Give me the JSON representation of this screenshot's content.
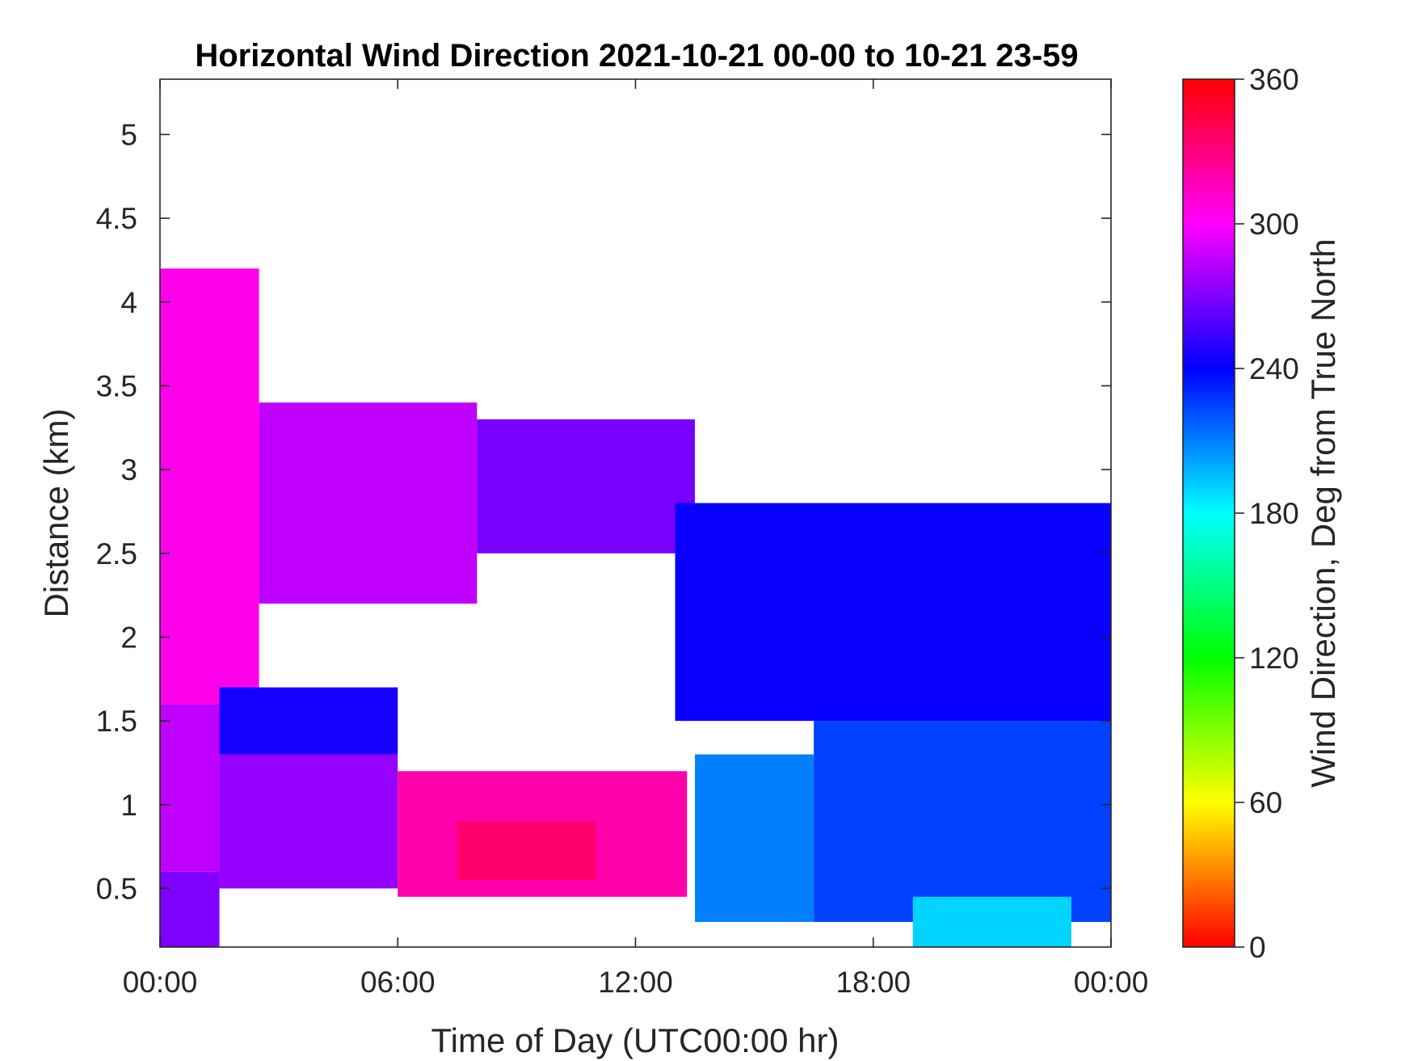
{
  "chart_data": {
    "type": "heatmap",
    "title": "Horizontal Wind Direction 2021-10-21 00-00 to 10-21 23-59",
    "xlabel": "Time of Day (UTC00:00 hr)",
    "ylabel": "Distance (km)",
    "colorbar_label": "Wind Direction, Deg from True North",
    "x_ticks": [
      "00:00",
      "06:00",
      "12:00",
      "18:00",
      "00:00"
    ],
    "x_range_hours": [
      0,
      24
    ],
    "y_ticks": [
      0.5,
      1,
      1.5,
      2,
      2.5,
      3,
      3.5,
      4,
      4.5,
      5
    ],
    "y_range_km": [
      0.15,
      5.33
    ],
    "colorbar_ticks": [
      0,
      60,
      120,
      180,
      240,
      300,
      360
    ],
    "colorbar_range": [
      0,
      360
    ],
    "colormap": [
      "#ff0000",
      "#ffff00",
      "#00ff00",
      "#00ffff",
      "#0000ff",
      "#ff00ff",
      "#ff0000"
    ],
    "grid": false,
    "regions": [
      {
        "hours": [
          0,
          1.5
        ],
        "km": [
          0.15,
          0.6
        ],
        "deg": 270
      },
      {
        "hours": [
          0,
          1.5
        ],
        "km": [
          0.6,
          1.6
        ],
        "deg": 285
      },
      {
        "hours": [
          0,
          2.5
        ],
        "km": [
          1.6,
          4.2
        ],
        "deg": 305
      },
      {
        "hours": [
          1.5,
          6
        ],
        "km": [
          1.3,
          1.7
        ],
        "deg": 245
      },
      {
        "hours": [
          1.5,
          6
        ],
        "km": [
          0.5,
          1.3
        ],
        "deg": 275
      },
      {
        "hours": [
          6,
          13.3
        ],
        "km": [
          0.45,
          1.2
        ],
        "deg": 320
      },
      {
        "hours": [
          7.5,
          11
        ],
        "km": [
          0.55,
          0.9
        ],
        "deg": 335
      },
      {
        "hours": [
          2.5,
          8
        ],
        "km": [
          2.2,
          3.4
        ],
        "deg": 285
      },
      {
        "hours": [
          8,
          13.5
        ],
        "km": [
          2.5,
          3.3
        ],
        "deg": 268
      },
      {
        "hours": [
          13.5,
          16.5
        ],
        "km": [
          0.3,
          1.3
        ],
        "deg": 210
      },
      {
        "hours": [
          16.5,
          24
        ],
        "km": [
          0.3,
          1.5
        ],
        "deg": 225
      },
      {
        "hours": [
          19,
          23
        ],
        "km": [
          0.15,
          0.45
        ],
        "deg": 190
      },
      {
        "hours": [
          13,
          24
        ],
        "km": [
          1.5,
          2.8
        ],
        "deg": 242
      }
    ]
  }
}
